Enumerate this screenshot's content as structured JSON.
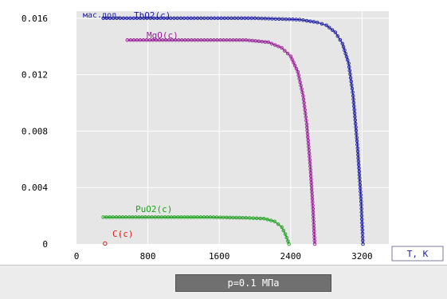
{
  "chart_data": {
    "type": "line",
    "ylabel": "мас.дол.",
    "xlabel": "T, K",
    "xlim": [
      0,
      3500
    ],
    "ylim": [
      0,
      0.0165
    ],
    "xticks": [
      {
        "value": 0,
        "label": "0"
      },
      {
        "value": 800,
        "label": "800"
      },
      {
        "value": 1600,
        "label": "1600"
      },
      {
        "value": 2400,
        "label": "2400"
      },
      {
        "value": 3200,
        "label": "3200"
      }
    ],
    "yticks": [
      {
        "value": 0,
        "label": "0"
      },
      {
        "value": 0.004,
        "label": "0.004"
      },
      {
        "value": 0.008,
        "label": "0.008"
      },
      {
        "value": 0.012,
        "label": "0.012"
      },
      {
        "value": 0.016,
        "label": "0.016"
      }
    ],
    "grid": true,
    "series": [
      {
        "name": "ThO2(c)",
        "color": "#1c1ca0",
        "points": [
          [
            300,
            0.016
          ],
          [
            2000,
            0.016
          ],
          [
            2500,
            0.0159
          ],
          [
            2700,
            0.0157
          ],
          [
            2800,
            0.0155
          ],
          [
            2900,
            0.015
          ],
          [
            2980,
            0.0142
          ],
          [
            3050,
            0.0128
          ],
          [
            3100,
            0.0105
          ],
          [
            3150,
            0.0068
          ],
          [
            3190,
            0.003
          ],
          [
            3210,
            0
          ]
        ]
      },
      {
        "name": "MgO(c)",
        "color": "#962096",
        "points": [
          [
            570,
            0.01445
          ],
          [
            1900,
            0.01445
          ],
          [
            2150,
            0.0143
          ],
          [
            2300,
            0.0139
          ],
          [
            2400,
            0.0133
          ],
          [
            2480,
            0.0122
          ],
          [
            2540,
            0.0105
          ],
          [
            2580,
            0.0085
          ],
          [
            2620,
            0.0055
          ],
          [
            2650,
            0.0025
          ],
          [
            2670,
            0
          ]
        ]
      },
      {
        "name": "PuO2(c)",
        "color": "#20a020",
        "points": [
          [
            300,
            0.0019
          ],
          [
            1500,
            0.0019
          ],
          [
            1900,
            0.00185
          ],
          [
            2100,
            0.0018
          ],
          [
            2220,
            0.0016
          ],
          [
            2300,
            0.0012
          ],
          [
            2340,
            0.0007
          ],
          [
            2370,
            0.0002
          ],
          [
            2380,
            0
          ]
        ]
      },
      {
        "name": "C(c)",
        "color": "#e02020",
        "points": [
          [
            320,
            3e-05
          ]
        ]
      }
    ]
  },
  "status": {
    "pressure_label": "p=0.1 МПа"
  }
}
